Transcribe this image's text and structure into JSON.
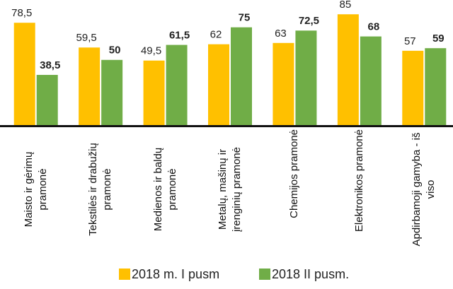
{
  "chart_data": {
    "type": "bar",
    "categories": [
      "Maisto ir gėrimų pramonė",
      "Tekstilės ir drabužių pramonė",
      "Medienos ir baldų pramonė",
      "Metalų, mašinų ir įrenginių pramonė",
      "Chemijos pramonė",
      "Elektronikos pramonė",
      "Apdirbamoji gamyba - iš viso"
    ],
    "series": [
      {
        "name": "2018 m. I pusm",
        "color": "#FFC000",
        "values": [
          78.5,
          59.5,
          49.5,
          62,
          63,
          85,
          57
        ],
        "value_labels": [
          "78,5",
          "59,5",
          "49,5",
          "62",
          "63",
          "85",
          "57"
        ]
      },
      {
        "name": "2018 II pusm.",
        "color": "#70AD47",
        "values": [
          38.5,
          50,
          61.5,
          75,
          72.5,
          68,
          59
        ],
        "value_labels": [
          "38,5",
          "50",
          "61,5",
          "75",
          "72,5",
          "68",
          "59"
        ]
      }
    ],
    "ylim": [
      0,
      90
    ],
    "legend": "bottom"
  }
}
